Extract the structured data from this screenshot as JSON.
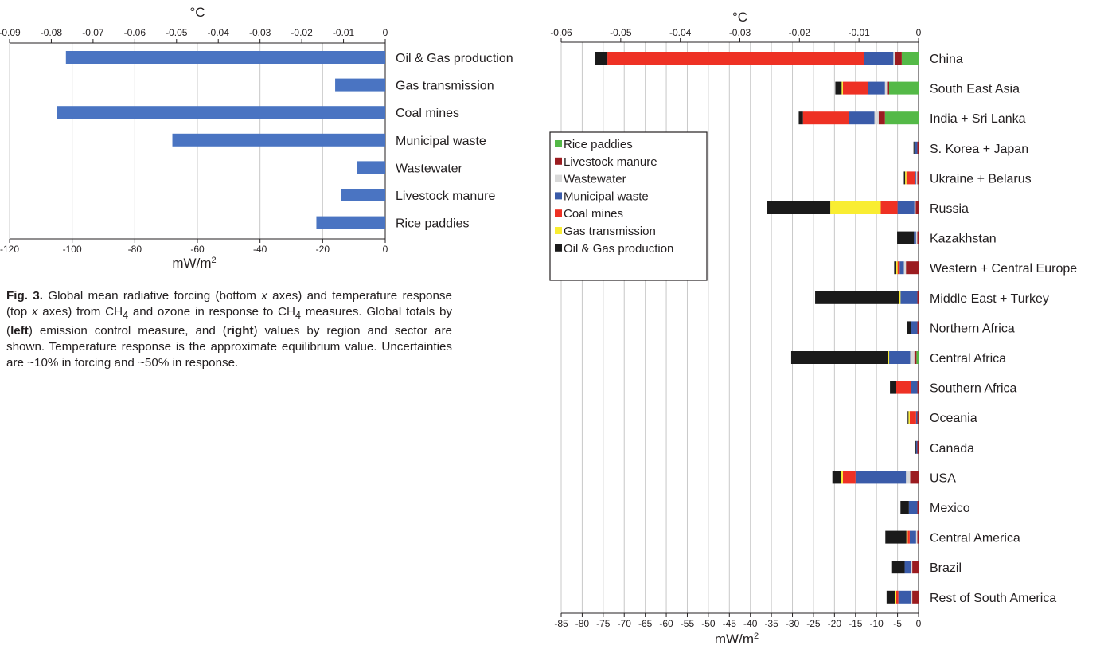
{
  "caption": {
    "fig": "Fig. 3.",
    "t1": " Global mean radiative forcing (bottom ",
    "x1": "x",
    "t2": " axes) and temperature response (top ",
    "x2": "x",
    "t3": " axes) from CH",
    "sub1": "4",
    "t4": " and ozone in response to CH",
    "sub2": "4",
    "t5": " measures. Global totals by (",
    "b1": "left",
    "t6": ") emission control measure, and (",
    "b2": "right",
    "t7": ") values by region and sector are shown. Temperature response is the approximate equilibrium value. Uncertainties are ~10% in forcing and ~50% in response."
  },
  "chart_data": [
    {
      "type": "bar",
      "orientation": "horizontal",
      "top_axis_label": "°C",
      "top_ticks": [
        "-0.09",
        "-0.08",
        "-0.07",
        "-0.06",
        "-0.05",
        "-0.04",
        "-0.03",
        "-0.02",
        "-0.01",
        "0"
      ],
      "top_range": [
        -0.09,
        0
      ],
      "xlabel": "mW/m²",
      "bottom_ticks": [
        "-120",
        "-100",
        "-80",
        "-60",
        "-40",
        "-20",
        "0"
      ],
      "xlim": [
        -120,
        0
      ],
      "categories": [
        "Oil & Gas production",
        "Gas transmission",
        "Coal mines",
        "Municipal waste",
        "Wastewater",
        "Livestock manure",
        "Rice paddies"
      ],
      "values": [
        -102,
        -16,
        -105,
        -68,
        -9,
        -14,
        -22
      ],
      "color": "#4a74c2",
      "grid": true
    },
    {
      "type": "bar",
      "orientation": "horizontal",
      "stacked": true,
      "top_axis_label": "°C",
      "top_ticks": [
        "-0.06",
        "-0.05",
        "-0.04",
        "-0.03",
        "-0.02",
        "-0.01",
        "0"
      ],
      "top_range": [
        -0.06,
        0
      ],
      "xlabel": "mW/m²",
      "bottom_ticks": [
        "-85",
        "-80",
        "-75",
        "-70",
        "-65",
        "-60",
        "-55",
        "-50",
        "-45",
        "-40",
        "-35",
        "-30",
        "-25",
        "-20",
        "-15",
        "-10",
        "-5",
        "0"
      ],
      "xlim": [
        -85,
        0
      ],
      "legend_position": "left",
      "categories": [
        "China",
        "South East Asia",
        "India + Sri Lanka",
        "S. Korea + Japan",
        "Ukraine + Belarus",
        "Russia",
        "Kazakhstan",
        "Western + Central Europe",
        "Middle East + Turkey",
        "Northern Africa",
        "Central Africa",
        "Southern Africa",
        "Oceania",
        "Canada",
        "USA",
        "Mexico",
        "Central America",
        "Brazil",
        "Rest of South America"
      ],
      "series": [
        {
          "name": "Rice paddies",
          "color": "#54b947",
          "values": [
            -4,
            -7,
            -8,
            0,
            0,
            0,
            0,
            0,
            0,
            0,
            -0.5,
            0,
            0,
            0,
            0,
            0,
            0,
            0,
            0
          ]
        },
        {
          "name": "Livestock manure",
          "color": "#9b1c20",
          "values": [
            -1.5,
            -0.5,
            -1.5,
            -0.3,
            -0.3,
            -0.7,
            -0.3,
            -3,
            -0.3,
            -0.3,
            -0.5,
            -0.3,
            -0.3,
            -0.3,
            -2,
            -0.3,
            -0.3,
            -1.5,
            -1.5
          ]
        },
        {
          "name": "Wastewater",
          "color": "#d9d9d9",
          "values": [
            -0.5,
            -0.5,
            -1,
            0,
            -0.3,
            -0.3,
            -0.3,
            -0.5,
            0,
            0,
            -1,
            0,
            0,
            0,
            -1,
            0,
            -0.3,
            -0.3,
            -0.3
          ]
        },
        {
          "name": "Municipal waste",
          "color": "#3a5ba9",
          "values": [
            -7,
            -4,
            -6,
            -0.7,
            -0.3,
            -4,
            -0.5,
            -1,
            -4,
            -1.5,
            -5,
            -1.5,
            -0.3,
            -0.3,
            -12,
            -2,
            -1.5,
            -1.5,
            -3
          ]
        },
        {
          "name": "Coal mines",
          "color": "#ee3124",
          "values": [
            -61,
            -6,
            -11,
            0,
            -2,
            -4,
            0,
            -0.5,
            0,
            0,
            0,
            -3.5,
            -1.5,
            0,
            -3,
            0,
            -0.5,
            0,
            -0.5
          ]
        },
        {
          "name": "Gas transmission",
          "color": "#f9ed32",
          "values": [
            0,
            -0.3,
            0,
            0,
            -0.3,
            -12,
            0,
            -0.3,
            -0.3,
            0,
            -0.3,
            0,
            -0.3,
            0,
            -0.5,
            0,
            -0.3,
            0,
            -0.3
          ]
        },
        {
          "name": "Oil & Gas production",
          "color": "#1a1a1a",
          "values": [
            -3,
            -1.5,
            -1,
            -0.2,
            -0.3,
            -15,
            -4,
            -0.5,
            -20,
            -1,
            -23,
            -1.5,
            -0.2,
            -0.2,
            -2,
            -2,
            -5,
            -3,
            -2
          ]
        }
      ],
      "grid": true
    }
  ]
}
